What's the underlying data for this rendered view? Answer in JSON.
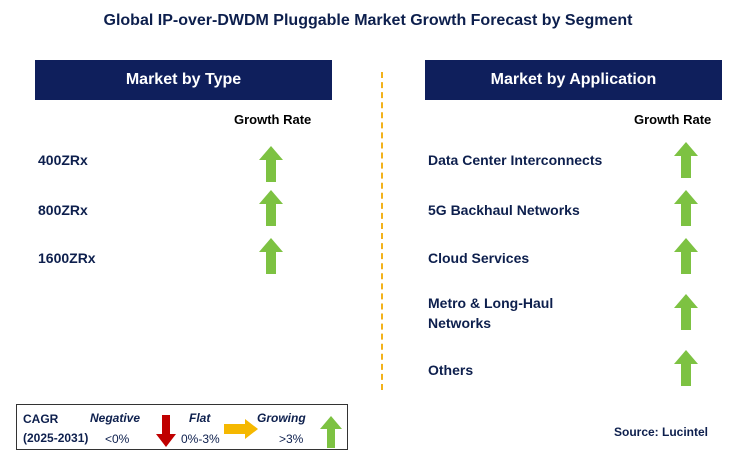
{
  "title": "Global IP-over-DWDM Pluggable Market Growth Forecast by Segment",
  "left_panel": {
    "header": "Market by Type",
    "column_header": "Growth Rate",
    "items": [
      {
        "label": "400ZRx",
        "trend": "growing"
      },
      {
        "label": "800ZRx",
        "trend": "growing"
      },
      {
        "label": "1600ZRx",
        "trend": "growing"
      }
    ]
  },
  "right_panel": {
    "header": "Market by Application",
    "column_header": "Growth Rate",
    "items": [
      {
        "label": "Data Center Interconnects",
        "trend": "growing"
      },
      {
        "label": "5G Backhaul Networks",
        "trend": "growing"
      },
      {
        "label": "Cloud Services",
        "trend": "growing"
      },
      {
        "label": "Metro & Long-Haul Networks",
        "trend": "growing"
      },
      {
        "label": "Others",
        "trend": "growing"
      }
    ]
  },
  "legend": {
    "cagr_label": "CAGR",
    "period": "(2025-2031)",
    "negative": {
      "label": "Negative",
      "range": "<0%"
    },
    "flat": {
      "label": "Flat",
      "range": "0%-3%"
    },
    "growing": {
      "label": "Growing",
      "range": ">3%"
    }
  },
  "source": "Source: Lucintel",
  "colors": {
    "header_bg": "#0f1f5c",
    "growing": "#7dc242",
    "negative": "#c00000",
    "flat": "#f5b800",
    "divider": "#f2b21b"
  }
}
